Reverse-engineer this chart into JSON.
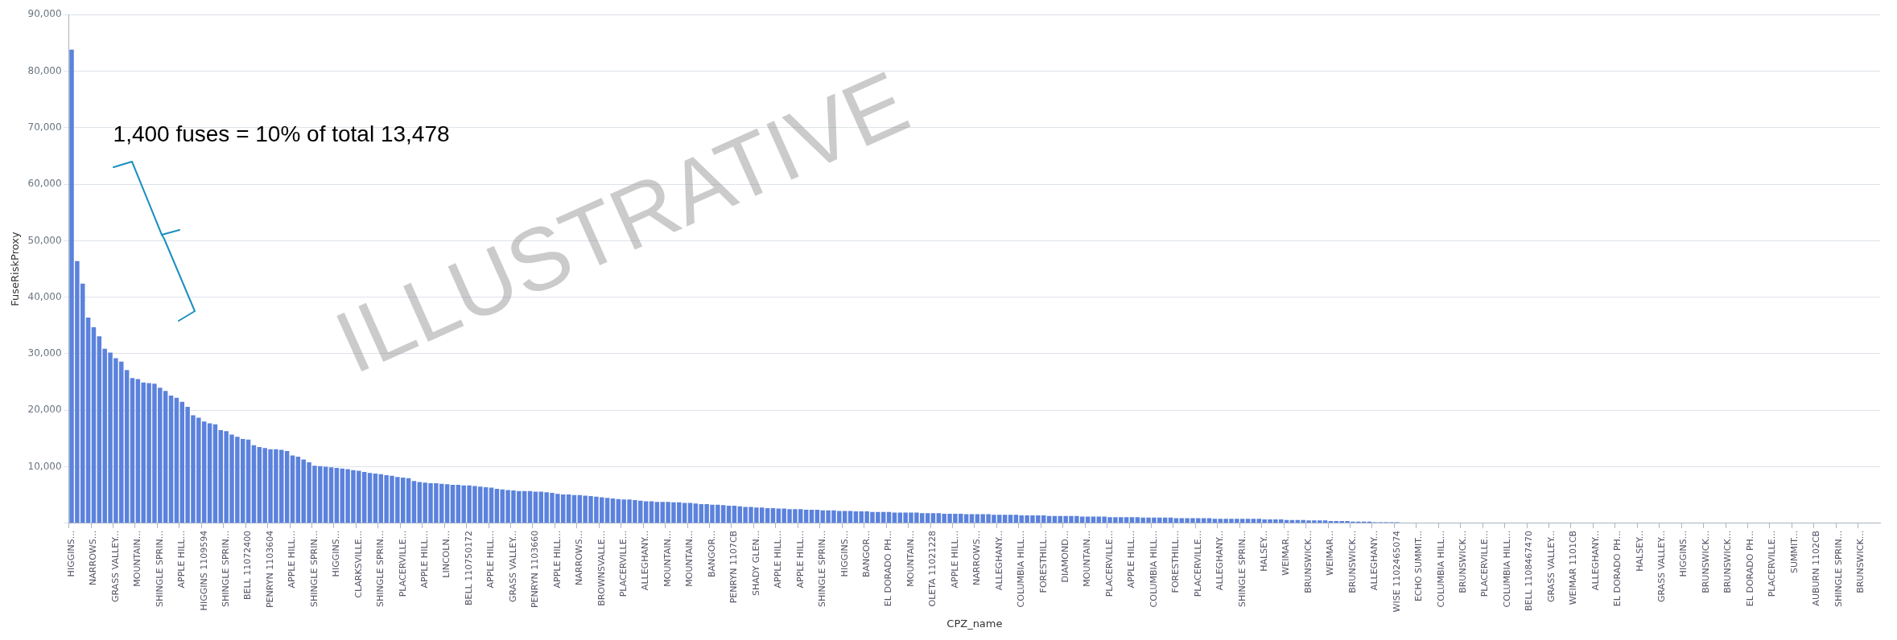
{
  "chart_data": {
    "type": "bar",
    "xlabel": "CPZ_name",
    "ylabel": "FuseRiskProxy",
    "categories": [
      "HIGGINS...",
      null,
      null,
      null,
      "NARROWS...",
      null,
      null,
      null,
      "GRASS VALLEY...",
      null,
      null,
      null,
      "MOUNTAIN...",
      null,
      null,
      null,
      "SHINGLE SPRIN...",
      null,
      null,
      null,
      "APPLE HILL...",
      null,
      null,
      null,
      "HIGGINS 1109594",
      null,
      null,
      null,
      "SHINGLE SPRIN...",
      null,
      null,
      null,
      "BELL 11072400",
      null,
      null,
      null,
      "PENRYN 1103604",
      null,
      null,
      null,
      "APPLE HILL...",
      null,
      null,
      null,
      "SHINGLE SPRIN...",
      null,
      null,
      null,
      "HIGGINS...",
      null,
      null,
      null,
      "CLARKSVILLE...",
      null,
      null,
      null,
      "SHINGLE SPRIN...",
      null,
      null,
      null,
      "PLACERVILLE...",
      null,
      null,
      null,
      "APPLE HILL...",
      null,
      null,
      null,
      "LINCOLN...",
      null,
      null,
      null,
      "BELL 110750172",
      null,
      null,
      null,
      "APPLE HILL...",
      null,
      null,
      null,
      "GRASS VALLEY...",
      null,
      null,
      null,
      "PENRYN 1103660",
      null,
      null,
      null,
      "APPLE HILL...",
      null,
      null,
      null,
      "NARROWS...",
      null,
      null,
      null,
      "BROWNSVALLE...",
      null,
      null,
      null,
      "PLACERVILLE...",
      null,
      null,
      null,
      "ALLEGHANY...",
      null,
      null,
      null,
      "MOUNTAIN...",
      null,
      null,
      null,
      "MOUNTAIN...",
      null,
      null,
      null,
      "BANGOR...",
      null,
      null,
      null,
      "PENRYN 1107CB",
      null,
      null,
      null,
      "SHADY GLEN...",
      null,
      null,
      null,
      "APPLE HILL...",
      null,
      null,
      null,
      "APPLE HILL...",
      null,
      null,
      null,
      "SHINGLE SPRIN...",
      null,
      null,
      null,
      "HIGGINS...",
      null,
      null,
      null,
      "BANGOR...",
      null,
      null,
      null,
      "EL DORADO PH...",
      null,
      null,
      null,
      "MOUNTAIN...",
      null,
      null,
      null,
      "OLETA 11021228",
      null,
      null,
      null,
      "APPLE HILL...",
      null,
      null,
      null,
      "NARROWS...",
      null,
      null,
      null,
      "ALLEGHANY...",
      null,
      null,
      null,
      "COLUMBIA HILL...",
      null,
      null,
      null,
      "FORESTHILL...",
      null,
      null,
      null,
      "DIAMOND...",
      null,
      null,
      null,
      "MOUNTAIN...",
      null,
      null,
      null,
      "PLACERVILLE...",
      null,
      null,
      null,
      "APPLE HILL...",
      null,
      null,
      null,
      "COLUMBIA HILL...",
      null,
      null,
      null,
      "FORESTHILL...",
      null,
      null,
      null,
      "PLACERVILLE...",
      null,
      null,
      null,
      "ALLEGHANY...",
      null,
      null,
      null,
      "SHINGLE SPRIN...",
      null,
      null,
      null,
      "HALSEY...",
      null,
      null,
      null,
      "WEIMAR...",
      null,
      null,
      null,
      "BRUNSWICK...",
      null,
      null,
      null,
      "WEIMAR...",
      null,
      null,
      null,
      "BRUNSWICK...",
      null,
      null,
      null,
      "ALLEGHANY...",
      null,
      null,
      null,
      "WISE 1102465074",
      null,
      null,
      null,
      "ECHO SUMMIT...",
      null,
      null,
      null,
      "COLUMBIA HILL...",
      null,
      null,
      null,
      "BRUNSWICK...",
      null,
      null,
      null,
      "PLACERVILLE...",
      null,
      null,
      null,
      "COLUMBIA HILL...",
      null,
      null,
      null,
      "BELL 1108467470",
      null,
      null,
      null,
      "GRASS VALLEY...",
      null,
      null,
      null,
      "WEIMAR 1101CB",
      null,
      null,
      null,
      "ALLEGHANY...",
      null,
      null,
      null,
      "EL DORADO PH...",
      null,
      null,
      null,
      "HALSEY...",
      null,
      null,
      null,
      "GRASS VALLEY...",
      null,
      null,
      null,
      "HIGGINS...",
      null,
      null,
      null,
      "BRUNSWICK...",
      null,
      null,
      null,
      "BRUNSWICK...",
      null,
      null,
      null,
      "EL DORADO PH...",
      null,
      null,
      null,
      "PLACERVILLE...",
      null,
      null,
      null,
      "SUMMIT...",
      null,
      null,
      null,
      "AUBURN 1102CB",
      null,
      null,
      null,
      "SHINGLE SPRIN...",
      null,
      null,
      null,
      "BRUNSWICK...",
      null,
      null,
      null
    ],
    "values": [
      83800,
      46400,
      42400,
      36400,
      34700,
      33100,
      30900,
      30200,
      29200,
      28600,
      27100,
      25700,
      25500,
      24900,
      24800,
      24700,
      24000,
      23400,
      22600,
      22200,
      21500,
      20600,
      19100,
      18700,
      18000,
      17700,
      17500,
      16500,
      16300,
      15700,
      15300,
      14900,
      14800,
      13800,
      13500,
      13300,
      13100,
      13100,
      13000,
      12800,
      12000,
      11800,
      11300,
      10800,
      10200,
      10100,
      10000,
      9900,
      9800,
      9700,
      9600,
      9400,
      9300,
      9100,
      8900,
      8800,
      8700,
      8500,
      8400,
      8200,
      8100,
      8000,
      7500,
      7300,
      7200,
      7100,
      7100,
      7000,
      6900,
      6800,
      6800,
      6700,
      6700,
      6600,
      6500,
      6400,
      6300,
      6100,
      6000,
      5900,
      5800,
      5700,
      5700,
      5700,
      5600,
      5600,
      5500,
      5400,
      5200,
      5100,
      5100,
      5000,
      5000,
      4900,
      4800,
      4700,
      4600,
      4500,
      4400,
      4300,
      4200,
      4200,
      4100,
      4000,
      3900,
      3900,
      3800,
      3800,
      3800,
      3700,
      3700,
      3600,
      3600,
      3500,
      3400,
      3400,
      3300,
      3300,
      3200,
      3100,
      3100,
      3000,
      2900,
      2900,
      2800,
      2800,
      2700,
      2700,
      2600,
      2600,
      2500,
      2500,
      2500,
      2400,
      2400,
      2400,
      2300,
      2300,
      2300,
      2200,
      2200,
      2200,
      2100,
      2100,
      2100,
      2000,
      2000,
      2000,
      2000,
      1900,
      1900,
      1900,
      1900,
      1900,
      1800,
      1800,
      1800,
      1800,
      1700,
      1700,
      1700,
      1700,
      1600,
      1600,
      1600,
      1600,
      1600,
      1500,
      1500,
      1500,
      1500,
      1500,
      1400,
      1400,
      1400,
      1400,
      1400,
      1300,
      1300,
      1300,
      1300,
      1300,
      1300,
      1200,
      1200,
      1200,
      1200,
      1200,
      1100,
      1100,
      1100,
      1100,
      1100,
      1100,
      1000,
      1000,
      1000,
      1000,
      1000,
      1000,
      900,
      900,
      900,
      900,
      900,
      900,
      900,
      800,
      800,
      800,
      800,
      800,
      800,
      800,
      800,
      800,
      700,
      700,
      700,
      700,
      600,
      600,
      600,
      600,
      500,
      500,
      500,
      500,
      400,
      400,
      400,
      400,
      300,
      300,
      300,
      300,
      200,
      200,
      200,
      200,
      200,
      100,
      100,
      100,
      100,
      100,
      100,
      100,
      0,
      0,
      0,
      0,
      0,
      0,
      0,
      0,
      0,
      0,
      0,
      0,
      0,
      0,
      0,
      0,
      0,
      0,
      0,
      0,
      0,
      0,
      0,
      0,
      0,
      0,
      0,
      0,
      0,
      0,
      0,
      0,
      0,
      0,
      0,
      0,
      0,
      0,
      0,
      0,
      0,
      0,
      0,
      0,
      0,
      0,
      0,
      0,
      0,
      0,
      0,
      0,
      0,
      0,
      0,
      0,
      0,
      0,
      0,
      0,
      0,
      0,
      0,
      0,
      0,
      0,
      0,
      0,
      0,
      0,
      0,
      0,
      0,
      0,
      0,
      0,
      0,
      0,
      0,
      0
    ],
    "color": "#5b82dc",
    "ylim": [
      0,
      90000
    ],
    "yticks": [
      {
        "value": 0,
        "label": null
      },
      {
        "value": 10000,
        "label": "10,000"
      },
      {
        "value": 20000,
        "label": "20,000"
      },
      {
        "value": 30000,
        "label": "30,000"
      },
      {
        "value": 40000,
        "label": "40,000"
      },
      {
        "value": 50000,
        "label": "50,000"
      },
      {
        "value": 60000,
        "label": "60,000"
      },
      {
        "value": 70000,
        "label": "70,000"
      },
      {
        "value": 80000,
        "label": "80,000"
      },
      {
        "value": 90000,
        "label": "90,000"
      }
    ],
    "grid": "y",
    "annotations": [
      "1,400 fuses = 10% of total 13,478",
      "ILLUSTRATIVE"
    ]
  }
}
